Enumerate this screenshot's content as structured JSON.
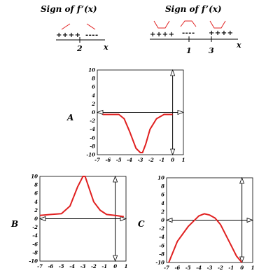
{
  "top_left": {
    "title": "Sign of f’(x)",
    "signs_left": "++++",
    "signs_right": "----",
    "mark": "2",
    "axis_label": "x"
  },
  "top_right": {
    "title": "Sign of f’(x)",
    "signs_1": "++++",
    "signs_2": "----",
    "signs_3": "++++",
    "mark_1": "1",
    "mark_2": "3",
    "axis_label": "x"
  },
  "chart_data": [
    {
      "type": "line",
      "label": "A",
      "x_ticks": [
        "-7",
        "-6",
        "-5",
        "-4",
        "-3",
        "-2",
        "-1",
        "0",
        "1"
      ],
      "y_ticks": [
        "10",
        "8",
        "6",
        "4",
        "2",
        "0",
        "-2",
        "-4",
        "-6",
        "-8",
        "-10"
      ],
      "xlim": [
        -7,
        1
      ],
      "ylim": [
        -10,
        10
      ],
      "x": [
        -6.5,
        -5.8,
        -5.0,
        -4.5,
        -4.0,
        -3.4,
        -3.0,
        -2.8,
        -2.5,
        -2.1,
        -1.5,
        -0.8,
        0.0
      ],
      "y": [
        -0.5,
        -0.5,
        -0.5,
        -1.5,
        -4.5,
        -8.5,
        -9.5,
        -9.5,
        -7.5,
        -4.0,
        -1.5,
        -0.5,
        -0.5
      ]
    },
    {
      "type": "line",
      "label": "B",
      "x_ticks": [
        "-7",
        "-6",
        "-5",
        "-4",
        "-3",
        "-2",
        "-1",
        "0",
        "1"
      ],
      "y_ticks": [
        "10",
        "8",
        "6",
        "4",
        "2",
        "0",
        "-2",
        "-4",
        "-6",
        "-8",
        "-10"
      ],
      "xlim": [
        -7,
        1
      ],
      "ylim": [
        -10,
        10
      ],
      "x": [
        -7.0,
        -6.0,
        -5.0,
        -4.2,
        -3.5,
        -3.0,
        -2.8,
        -2.4,
        -2.0,
        -1.4,
        -0.8,
        0.0,
        0.8
      ],
      "y": [
        0.8,
        1.0,
        1.2,
        3.0,
        7.5,
        10.0,
        10.0,
        7.0,
        4.0,
        2.0,
        1.0,
        0.8,
        0.5
      ]
    },
    {
      "type": "line",
      "label": "C",
      "x_ticks": [
        "-7",
        "-6",
        "-5",
        "-4",
        "-3",
        "-2",
        "-1",
        "0",
        "1"
      ],
      "y_ticks": [
        "10",
        "8",
        "6",
        "4",
        "2",
        "0",
        "-2",
        "-4",
        "-6",
        "-8",
        "-10"
      ],
      "xlim": [
        -7,
        1
      ],
      "ylim": [
        -10,
        10
      ],
      "x": [
        -6.8,
        -6.0,
        -5.0,
        -4.0,
        -3.5,
        -3.0,
        -2.5,
        -2.0,
        -1.5,
        -1.0,
        -0.5,
        0.0
      ],
      "y": [
        -10.0,
        -5.0,
        -1.5,
        1.0,
        1.5,
        1.2,
        0.5,
        -1.0,
        -3.5,
        -6.0,
        -8.5,
        -10.0
      ]
    }
  ]
}
